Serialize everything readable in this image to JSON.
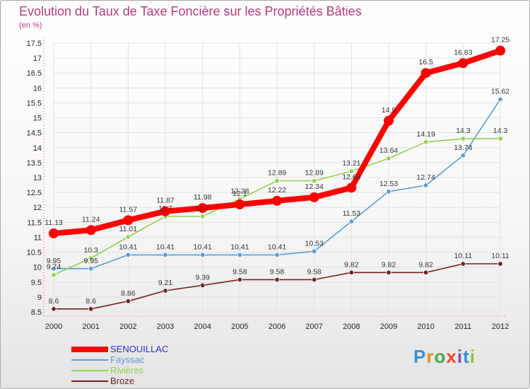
{
  "header": {
    "title": "Evolution du Taux de Taxe Foncière sur les Propriétés Bâties",
    "unit": "(en %)"
  },
  "brand": {
    "letters": [
      "P",
      "r",
      "o",
      "x",
      "i",
      "t",
      "i"
    ]
  },
  "colors": {
    "title": "#b43a78",
    "grid": "#e2e2e2",
    "axis_dots": "#e04f8a",
    "brand": [
      "#3a8fd4",
      "#e88a1a",
      "#4aa84a",
      "#e84a2a",
      "#7a4fb0",
      "#3a8fd4",
      "#8fc43a"
    ]
  },
  "chart_data": {
    "type": "line",
    "categories": [
      "2000",
      "2001",
      "2002",
      "2003",
      "2004",
      "2005",
      "2006",
      "2007",
      "2008",
      "2009",
      "2010",
      "2011",
      "2012"
    ],
    "ylim": [
      8.5,
      17.5
    ],
    "ytick_step": 0.5,
    "grid": true,
    "legend_position": "bottom-left",
    "series": [
      {
        "name": "Broze",
        "color": "#6e2323",
        "emphasis": false,
        "values": [
          8.6,
          8.6,
          8.86,
          9.21,
          9.39,
          9.58,
          9.58,
          9.58,
          9.82,
          9.82,
          9.82,
          10.11,
          10.11
        ],
        "labels": [
          "8.6",
          "8.6",
          "8.86",
          "9.21",
          "9.39",
          "9.58",
          "9.58",
          "9.58",
          "9.82",
          "9.82",
          "9.82",
          "10.11",
          "10.11"
        ]
      },
      {
        "name": "Fayssac",
        "color": "#5b9bd0",
        "emphasis": false,
        "values": [
          9.95,
          9.95,
          10.41,
          10.41,
          10.41,
          10.41,
          10.41,
          10.53,
          11.53,
          12.53,
          12.74,
          13.74,
          15.62
        ],
        "labels": [
          "9.95",
          "9.95",
          "10.41",
          "10.41",
          "10.41",
          "10.41",
          "10.41",
          "10.53",
          "11.53",
          "12.53",
          "12.74",
          "13.74",
          "15.62"
        ]
      },
      {
        "name": "Rivières",
        "color": "#8fd14f",
        "emphasis": false,
        "values": [
          9.74,
          10.3,
          11.01,
          11.7,
          11.7,
          12.28,
          12.89,
          12.89,
          13.21,
          13.64,
          14.19,
          14.3,
          14.3
        ],
        "labels": [
          "9.74",
          "10.3",
          "11.01",
          "11.7",
          "11.7",
          "12.28",
          "12.89",
          "12.89",
          "13.21",
          "13.64",
          "14.19",
          "14.3",
          "14.3"
        ]
      },
      {
        "name": "SENOUILLAC",
        "color": "#ff0000",
        "emphasis": true,
        "values": [
          11.13,
          11.24,
          11.57,
          11.87,
          11.98,
          12.1,
          12.22,
          12.34,
          12.66,
          14.9,
          16.5,
          16.83,
          17.25
        ],
        "labels": [
          "11.13",
          "11.24",
          "11.57",
          "11.87",
          "11.98",
          "12.1",
          "12.22",
          "12.34",
          "12.66",
          "14.9",
          "16.5",
          "16.83",
          "17.25"
        ]
      }
    ],
    "legend_order": [
      "SENOUILLAC",
      "Fayssac",
      "Rivières",
      "Broze"
    ]
  }
}
